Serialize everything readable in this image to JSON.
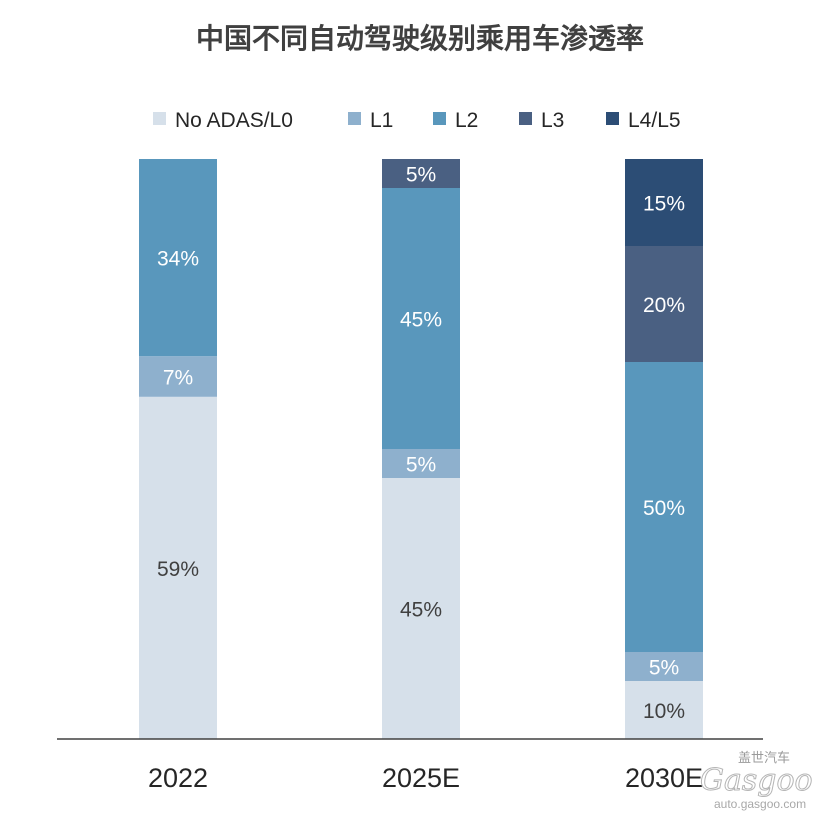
{
  "chart_data": {
    "type": "bar",
    "stacked": true,
    "title": "中国不同自动驾驶级别乘用车渗透率",
    "categories": [
      "2022",
      "2025E",
      "2030E"
    ],
    "series": [
      {
        "name": "No ADAS/L0",
        "values": [
          59,
          45,
          10
        ],
        "labels": [
          "59%",
          "45%",
          "10%"
        ],
        "color": "#d6e0ea",
        "label_color": "#404040"
      },
      {
        "name": "L1",
        "values": [
          7,
          5,
          5
        ],
        "labels": [
          "7%",
          "5%",
          "5%"
        ],
        "color": "#8eb0cd",
        "label_color": "#ffffff"
      },
      {
        "name": "L2",
        "values": [
          34,
          45,
          50
        ],
        "labels": [
          "34%",
          "45%",
          "50%"
        ],
        "color": "#5997bc",
        "label_color": "#ffffff"
      },
      {
        "name": "L3",
        "values": [
          0,
          5,
          20
        ],
        "labels": [
          "",
          "5%",
          "20%"
        ],
        "color": "#4a6082",
        "label_color": "#ffffff"
      },
      {
        "name": "L4/L5",
        "values": [
          0,
          0,
          15
        ],
        "labels": [
          "",
          "",
          "15%"
        ],
        "color": "#2c4d75",
        "label_color": "#ffffff"
      }
    ],
    "ylim": [
      0,
      100
    ],
    "grid": false,
    "legend_position": "top"
  },
  "watermark": {
    "brand_cn": "盖世汽车",
    "logo": "Gasgoo",
    "url": "auto.gasgoo.com"
  }
}
